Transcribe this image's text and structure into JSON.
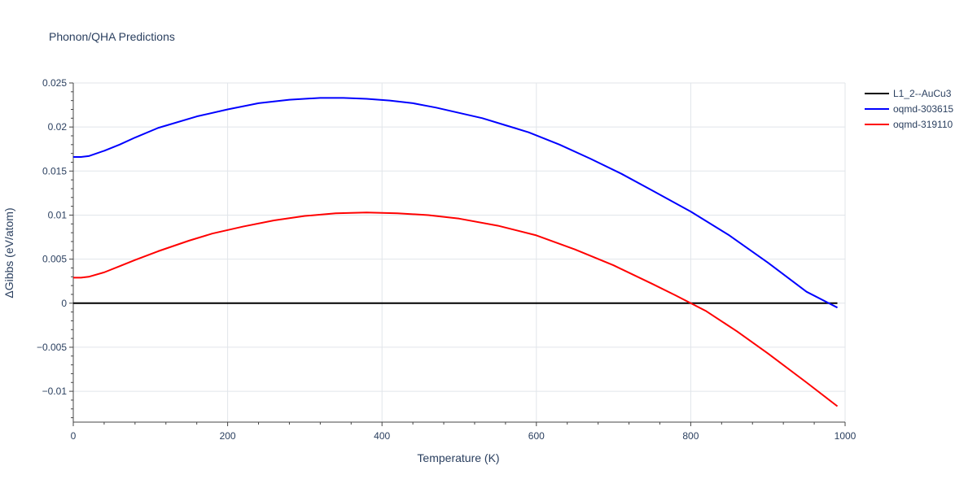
{
  "chart_data": {
    "type": "line",
    "title": "Phonon/QHA Predictions",
    "xlabel": "Temperature (K)",
    "ylabel": "ΔGibbs (eV/atom)",
    "xlim": [
      0,
      1000
    ],
    "ylim": [
      -0.0135,
      0.025
    ],
    "x_ticks": [
      0,
      200,
      400,
      600,
      800,
      1000
    ],
    "x_tick_labels": [
      "0",
      "200",
      "400",
      "600",
      "800",
      "1000"
    ],
    "y_ticks": [
      -0.01,
      -0.005,
      0,
      0.005,
      0.01,
      0.015,
      0.02,
      0.025
    ],
    "y_tick_labels": [
      "−0.01",
      "−0.005",
      "0",
      "0.005",
      "0.01",
      "0.015",
      "0.02",
      "0.025"
    ],
    "grid": true,
    "legend_position": "top-right",
    "series": [
      {
        "name": "L1_2--AuCu3",
        "color": "#000000",
        "x": [
          0,
          990
        ],
        "values": [
          0,
          0
        ]
      },
      {
        "name": "oqmd-303615",
        "color": "#0000ff",
        "x": [
          0,
          10,
          20,
          40,
          60,
          80,
          110,
          160,
          200,
          240,
          280,
          320,
          350,
          380,
          410,
          440,
          470,
          500,
          530,
          560,
          590,
          630,
          670,
          710,
          750,
          800,
          850,
          900,
          950,
          990
        ],
        "values": [
          0.0166,
          0.0166,
          0.0167,
          0.0173,
          0.018,
          0.0188,
          0.0199,
          0.0212,
          0.022,
          0.0227,
          0.0231,
          0.0233,
          0.0233,
          0.0232,
          0.023,
          0.0227,
          0.0222,
          0.0216,
          0.021,
          0.0202,
          0.0194,
          0.018,
          0.0164,
          0.0147,
          0.0128,
          0.0104,
          0.0077,
          0.0046,
          0.0013,
          -0.0005
        ]
      },
      {
        "name": "oqmd-319110",
        "color": "#ff0000",
        "x": [
          0,
          10,
          20,
          40,
          60,
          80,
          110,
          150,
          180,
          220,
          260,
          300,
          340,
          380,
          420,
          460,
          500,
          550,
          600,
          650,
          700,
          750,
          780,
          800,
          820,
          860,
          900,
          950,
          990
        ],
        "values": [
          0.0029,
          0.0029,
          0.003,
          0.0035,
          0.0042,
          0.0049,
          0.0059,
          0.0071,
          0.0079,
          0.0087,
          0.0094,
          0.0099,
          0.0102,
          0.0103,
          0.0102,
          0.01,
          0.0096,
          0.0088,
          0.0077,
          0.0061,
          0.0043,
          0.0022,
          0.0009,
          0.0,
          -0.0009,
          -0.0032,
          -0.0057,
          -0.009,
          -0.0117
        ]
      }
    ]
  }
}
